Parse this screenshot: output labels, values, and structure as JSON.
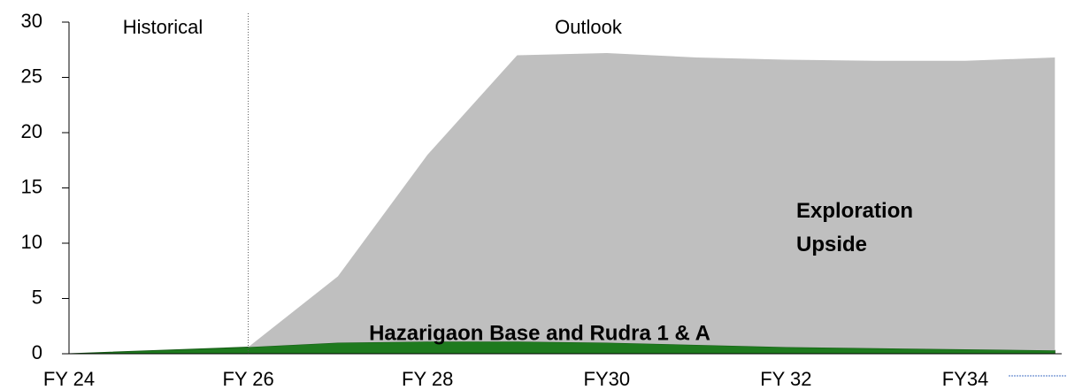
{
  "chart_data": {
    "type": "area",
    "categories": [
      "FY 24",
      null,
      "FY 26",
      null,
      "FY 28",
      null,
      "FY30",
      null,
      "FY 32",
      null,
      "FY34",
      null
    ],
    "series": [
      {
        "name": "Hazarigaon Base and Rudra 1 & A",
        "color": "#1e7a1e",
        "values": [
          0,
          0.3,
          0.6,
          1.0,
          1.1,
          1.1,
          1.0,
          0.8,
          0.6,
          0.5,
          0.4,
          0.3
        ]
      },
      {
        "name": "Exploration Upside",
        "color": "#bfbfbf",
        "values": [
          0,
          0,
          0,
          6,
          16.9,
          25.9,
          26.2,
          26.0,
          26.0,
          26.0,
          26.1,
          26.5
        ]
      }
    ],
    "stacked": true,
    "ylim": [
      0,
      30
    ],
    "yticks": [
      0,
      5,
      10,
      15,
      20,
      25,
      30
    ],
    "annotations": [
      "Historical",
      "Outlook"
    ]
  }
}
